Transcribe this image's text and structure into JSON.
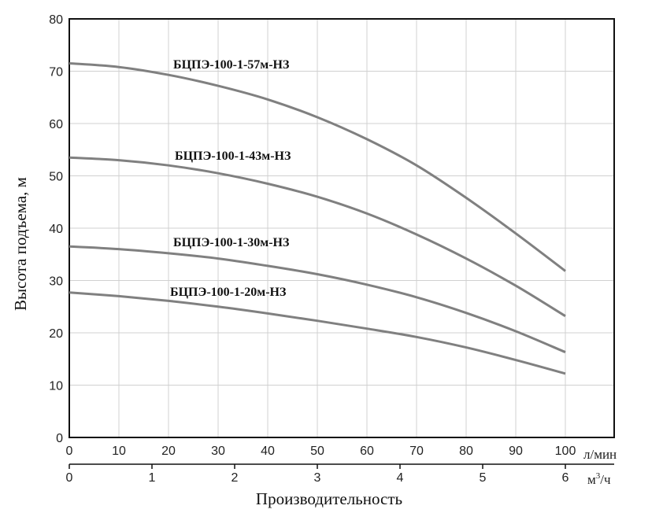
{
  "chart_data": {
    "type": "line",
    "ylabel": "Высота подъема, м",
    "xlabel": "Производительность",
    "x_unit": "л/мин",
    "x2_unit_base": "м",
    "x2_unit_sup": "3",
    "x2_unit_tail": "/ч",
    "xlim": [
      0,
      100
    ],
    "ylim": [
      0,
      80
    ],
    "x_ticks": [
      "0",
      "10",
      "20",
      "30",
      "40",
      "50",
      "60",
      "70",
      "80",
      "90",
      "100"
    ],
    "x2_ticks": [
      "0",
      "1",
      "2",
      "3",
      "4",
      "5",
      "6"
    ],
    "y_ticks": [
      "0",
      "10",
      "20",
      "30",
      "40",
      "50",
      "60",
      "70",
      "80"
    ],
    "grid": true,
    "series": [
      {
        "name": "БЦПЭ-100-1-57м-НЗ",
        "x": [
          0,
          10,
          20,
          30,
          40,
          50,
          60,
          70,
          80,
          90,
          100
        ],
        "y": [
          71.5,
          70.8,
          69.3,
          67.2,
          64.6,
          61.2,
          57.0,
          52.0,
          45.8,
          39.0,
          31.8
        ]
      },
      {
        "name": "БЦПЭ-100-1-43м-НЗ",
        "x": [
          0,
          10,
          20,
          30,
          40,
          50,
          60,
          70,
          80,
          90,
          100
        ],
        "y": [
          53.5,
          53.0,
          52.0,
          50.5,
          48.5,
          46.0,
          42.8,
          38.8,
          34.2,
          29.0,
          23.2
        ]
      },
      {
        "name": "БЦПЭ-100-1-30м-НЗ",
        "x": [
          0,
          10,
          20,
          30,
          40,
          50,
          60,
          70,
          80,
          90,
          100
        ],
        "y": [
          36.5,
          36.0,
          35.2,
          34.2,
          32.8,
          31.2,
          29.2,
          26.8,
          23.8,
          20.3,
          16.3
        ]
      },
      {
        "name": "БЦПЭ-100-1-20м-НЗ",
        "x": [
          0,
          10,
          20,
          30,
          40,
          50,
          60,
          70,
          80,
          90,
          100
        ],
        "y": [
          27.7,
          27.0,
          26.1,
          25.0,
          23.7,
          22.3,
          20.8,
          19.2,
          17.2,
          14.8,
          12.2
        ]
      }
    ]
  }
}
